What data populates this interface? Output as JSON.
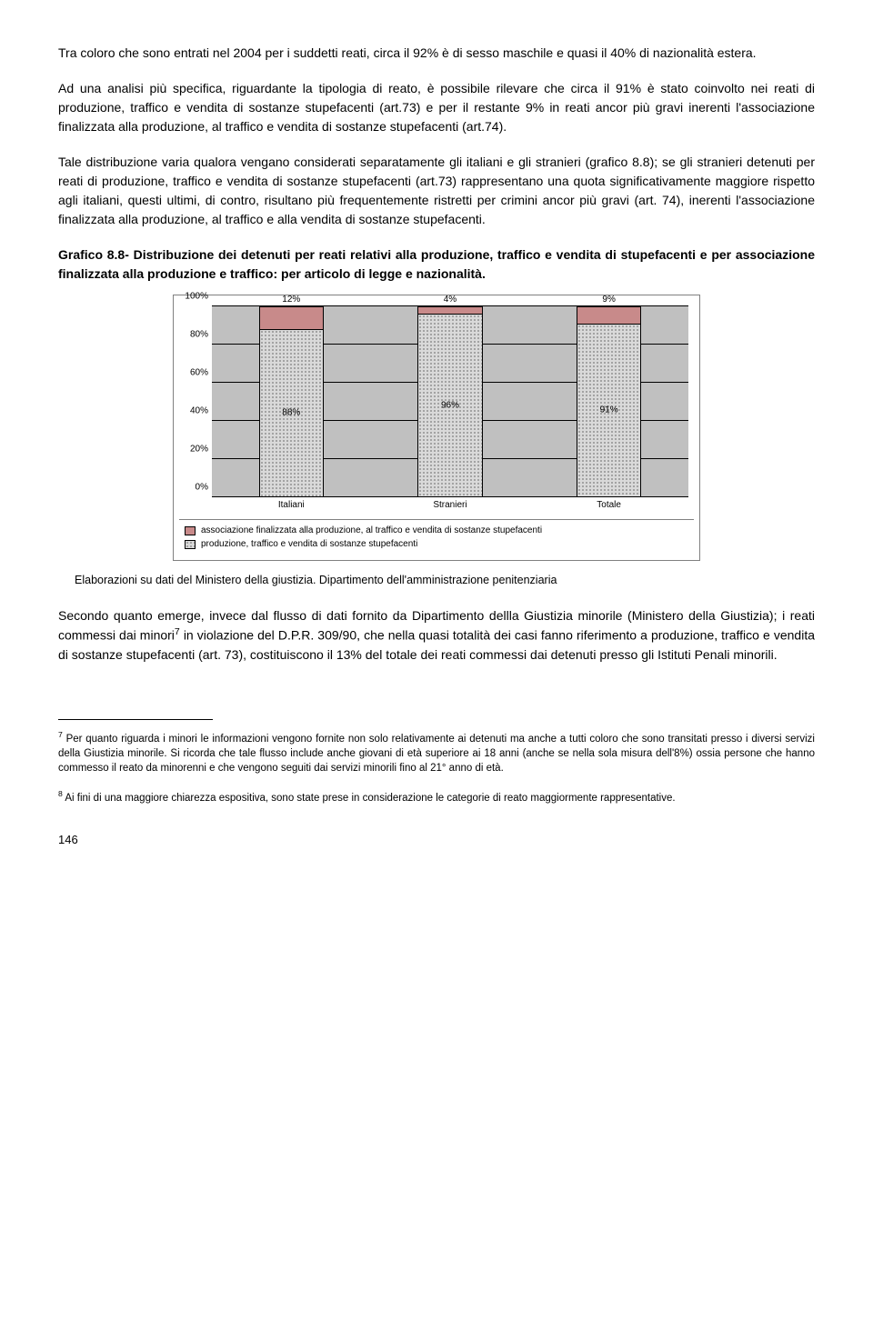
{
  "paragraphs": {
    "p1": "Tra coloro che sono entrati nel 2004 per i suddetti reati, circa il 92% è di sesso maschile e quasi il 40% di nazionalità estera.",
    "p2": "Ad una analisi più specifica, riguardante la tipologia di reato, è possibile rilevare che circa il 91% è stato coinvolto nei reati di produzione, traffico e vendita di sostanze stupefacenti (art.73) e per il restante 9% in reati ancor più gravi inerenti l'associazione finalizzata alla produzione, al traffico e vendita di sostanze stupefacenti (art.74).",
    "p3": "Tale distribuzione varia qualora vengano considerati separatamente gli italiani e gli stranieri (grafico 8.8); se gli stranieri detenuti per reati di produzione, traffico e vendita di sostanze stupefacenti (art.73) rappresentano una quota significativamente maggiore rispetto agli italiani, questi ultimi, di contro, risultano più frequentemente ristretti per crimini ancor più gravi (art. 74), inerenti l'associazione finalizzata alla produzione, al traffico e alla vendita di sostanze stupefacenti.",
    "p4": "Secondo quanto emerge, invece dal flusso di dati fornito da Dipartimento dellla Giustizia minorile (Ministero della Giustizia); i reati commessi dai minori",
    "p4b": " in violazione del D.P.R. 309/90, che nella quasi totalità dei casi fanno riferimento a produzione, traffico e vendita di sostanze stupefacenti (art. 73), costituiscono il 13% del totale dei reati commessi dai detenuti presso gli Istituti Penali minorili."
  },
  "caption": "Grafico  8.8- Distribuzione dei detenuti per reati relativi alla produzione, traffico e vendita di stupefacenti e per associazione finalizzata alla produzione e traffico: per articolo di legge e nazionalità.",
  "chart": {
    "type": "stacked-bar-100",
    "background_color": "#c0c0c0",
    "grid_color": "#000000",
    "ylim": [
      0,
      100
    ],
    "ytick_step": 20,
    "yticks": [
      "0%",
      "20%",
      "40%",
      "60%",
      "80%",
      "100%"
    ],
    "categories": [
      "Italiani",
      "Stranieri",
      "Totale"
    ],
    "top_values": [
      "12%",
      "4%",
      "9%"
    ],
    "bottom_values": [
      "88%",
      "96%",
      "91%"
    ],
    "top_heights_pct": [
      12,
      4,
      9
    ],
    "bottom_heights_pct": [
      88,
      96,
      91
    ],
    "series_top": {
      "label": "associazione finalizzata alla produzione, al traffico e vendita di sostanze stupefacenti",
      "color": "#c88a8a"
    },
    "series_bottom": {
      "label": "produzione, traffico e vendita di sostanze stupefacenti",
      "color": "#d9d9d9"
    },
    "axis_fontsize": 10,
    "label_fontsize": 10
  },
  "source": "Elaborazioni su dati del Ministero della  giustizia. Dipartimento dell'amministrazione penitenziaria",
  "footnotes": {
    "f7_num": "7",
    "f7": " Per quanto riguarda i minori le informazioni vengono fornite non solo relativamente ai detenuti ma anche a tutti coloro che sono transitati presso i diversi servizi della Giustizia minorile. Si ricorda che tale flusso include anche giovani di età superiore ai 18 anni (anche se nella sola misura dell'8%) ossia persone che hanno commesso il reato da minorenni e che vengono seguiti dai servizi minorili fino al 21° anno di età.",
    "f8_num": "8",
    "f8": " Ai fini di una maggiore chiarezza espositiva, sono state prese in considerazione le categorie di reato maggiormente rappresentative."
  },
  "page_number": "146",
  "sup7": "7"
}
